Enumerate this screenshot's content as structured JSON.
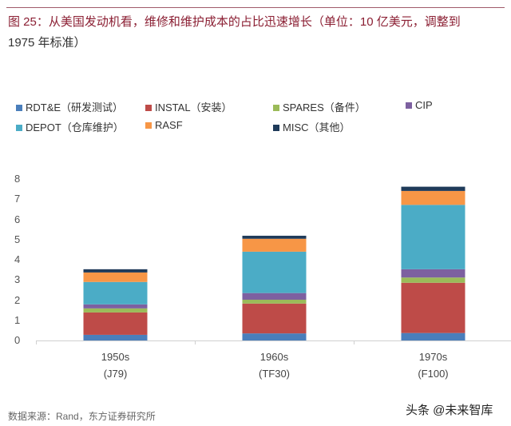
{
  "header": {
    "title_line1": "图 25：从美国发动机看，维修和维护成本的占比迅速增长（单位：10 亿美元，调整到",
    "title_line2": "1975 年标准）"
  },
  "chart_data": {
    "type": "bar",
    "stacked": true,
    "title": "图 25：从美国发动机看，维修和维护成本的占比迅速增长（单位：10 亿美元，调整到1975 年标准）",
    "categories": [
      "1950s (J79)",
      "1960s (TF30)",
      "1970s (F100)"
    ],
    "category_lines": [
      [
        "1950s",
        "(J79)"
      ],
      [
        "1960s",
        "(TF30)"
      ],
      [
        "1970s",
        "(F100)"
      ]
    ],
    "ylim": [
      0,
      8
    ],
    "yticks": [
      "0",
      "1",
      "2",
      "3",
      "4",
      "5",
      "6",
      "7",
      "8"
    ],
    "grid": false,
    "legend_placement": "top",
    "series": [
      {
        "name": "RDT&E（研发测试）",
        "color": "#4a7ebb",
        "values": [
          0.28,
          0.35,
          0.37
        ]
      },
      {
        "name": "INSTAL（安装）",
        "color": "#be4b48",
        "values": [
          1.11,
          1.48,
          2.49
        ]
      },
      {
        "name": "SPARES（备件）",
        "color": "#9bbb59",
        "values": [
          0.2,
          0.19,
          0.26
        ]
      },
      {
        "name": "CIP",
        "color": "#7d60a0",
        "values": [
          0.2,
          0.33,
          0.41
        ]
      },
      {
        "name": "DEPOT（仓库维护）",
        "color": "#4bacc6",
        "values": [
          1.11,
          2.05,
          3.19
        ]
      },
      {
        "name": "RASF",
        "color": "#f79646",
        "values": [
          0.47,
          0.64,
          0.69
        ]
      },
      {
        "name": "MISC（其他）",
        "color": "#1f3b5a",
        "values": [
          0.16,
          0.15,
          0.21
        ]
      }
    ]
  },
  "footer": {
    "source": "数据来源：Rand，东方证券研究所",
    "watermark": "头条 @未来智库"
  }
}
